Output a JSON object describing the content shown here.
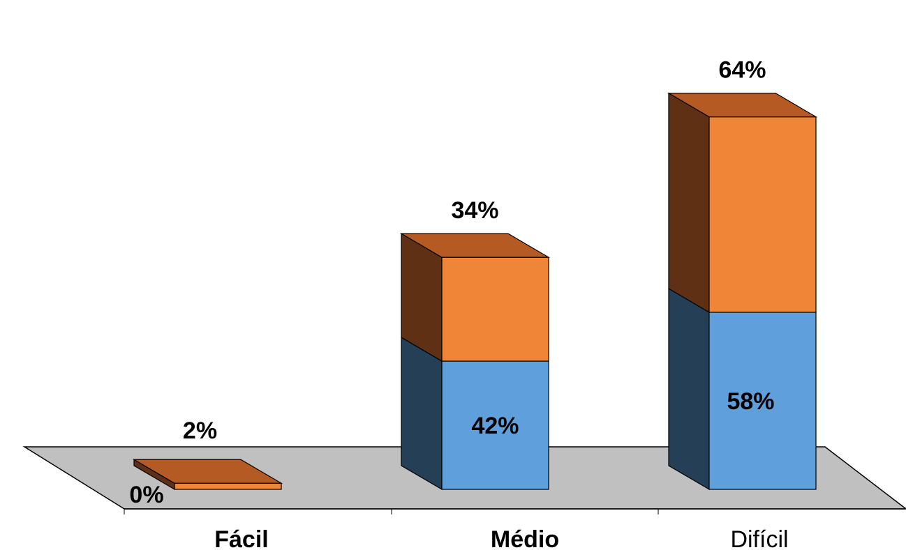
{
  "chart_data": {
    "type": "bar",
    "stacked": true,
    "three_d": true,
    "categories": [
      "Fácil",
      "Médio",
      "Difícil"
    ],
    "category_bold": [
      true,
      true,
      false
    ],
    "series": [
      {
        "values": [
          0,
          42,
          58
        ],
        "labels": [
          "0%",
          "42%",
          "58%"
        ],
        "color": "#5f9fdb",
        "side_color": "#243f56"
      },
      {
        "values": [
          2,
          34,
          64
        ],
        "labels": [
          "2%",
          "34%",
          "64%"
        ],
        "color": "#f08537",
        "side_color": "#603014",
        "top_color": "#b55a22"
      }
    ],
    "floor_color": "#c0c0c0",
    "grid": false
  }
}
